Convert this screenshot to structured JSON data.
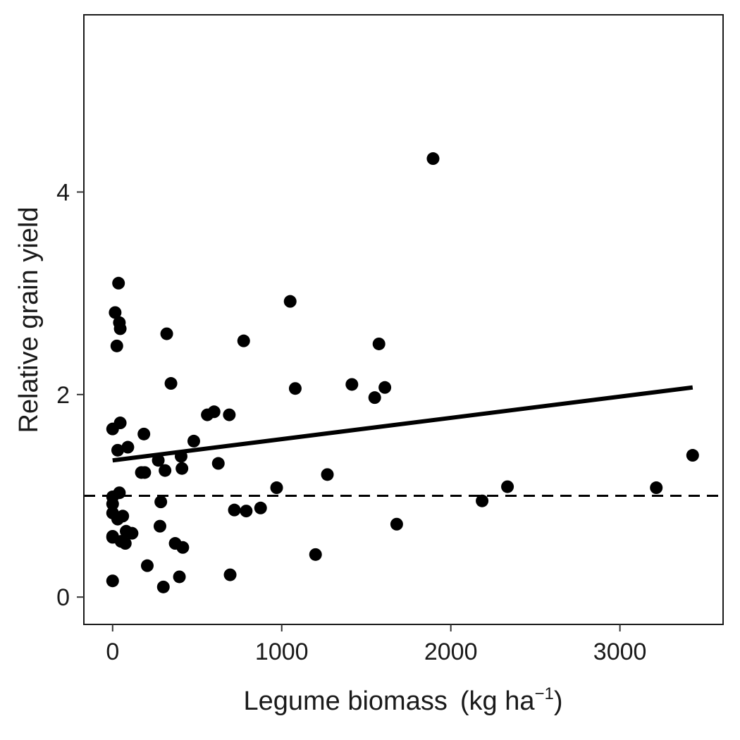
{
  "chart_data": {
    "type": "scatter",
    "title": "",
    "xlabel_main": "Legume biomass",
    "xlabel_unit_open": "(kg ha",
    "xlabel_unit_sup": "−1",
    "xlabel_unit_close": ")",
    "ylabel": "Relative grain yield",
    "xlim": [
      -170,
      3610
    ],
    "ylim": [
      -0.27,
      5.75
    ],
    "x_ticks": [
      0,
      1000,
      2000,
      3000
    ],
    "x_tick_labels": [
      "0",
      "1000",
      "2000",
      "3000"
    ],
    "y_ticks": [
      0,
      2,
      4
    ],
    "y_tick_labels": [
      "0",
      "2",
      "4"
    ],
    "grid": false,
    "legend": "none",
    "reference_line": {
      "y": 1,
      "style": "dashed"
    },
    "trend_line": {
      "x": [
        0,
        3430
      ],
      "y": [
        1.35,
        2.07
      ]
    },
    "points": [
      {
        "x": 0,
        "y": 0.16
      },
      {
        "x": 0,
        "y": 0.59
      },
      {
        "x": 0,
        "y": 0.6
      },
      {
        "x": 0,
        "y": 0.83
      },
      {
        "x": 0,
        "y": 0.92
      },
      {
        "x": 0,
        "y": 0.99
      },
      {
        "x": 0,
        "y": 1.66
      },
      {
        "x": 15,
        "y": 2.81
      },
      {
        "x": 25,
        "y": 2.48
      },
      {
        "x": 30,
        "y": 1.45
      },
      {
        "x": 30,
        "y": 0.77
      },
      {
        "x": 35,
        "y": 3.1
      },
      {
        "x": 40,
        "y": 1.03
      },
      {
        "x": 40,
        "y": 2.71
      },
      {
        "x": 45,
        "y": 2.65
      },
      {
        "x": 45,
        "y": 1.72
      },
      {
        "x": 50,
        "y": 0.55
      },
      {
        "x": 60,
        "y": 0.8
      },
      {
        "x": 75,
        "y": 0.53
      },
      {
        "x": 80,
        "y": 0.65
      },
      {
        "x": 90,
        "y": 1.48
      },
      {
        "x": 115,
        "y": 0.63
      },
      {
        "x": 170,
        "y": 1.23
      },
      {
        "x": 185,
        "y": 1.61
      },
      {
        "x": 190,
        "y": 1.23
      },
      {
        "x": 205,
        "y": 0.31
      },
      {
        "x": 270,
        "y": 1.35
      },
      {
        "x": 280,
        "y": 0.7
      },
      {
        "x": 285,
        "y": 0.94
      },
      {
        "x": 300,
        "y": 0.1
      },
      {
        "x": 310,
        "y": 1.25
      },
      {
        "x": 320,
        "y": 2.6
      },
      {
        "x": 345,
        "y": 2.11
      },
      {
        "x": 370,
        "y": 0.53
      },
      {
        "x": 395,
        "y": 0.2
      },
      {
        "x": 405,
        "y": 1.39
      },
      {
        "x": 410,
        "y": 1.27
      },
      {
        "x": 415,
        "y": 0.49
      },
      {
        "x": 480,
        "y": 1.54
      },
      {
        "x": 560,
        "y": 1.8
      },
      {
        "x": 600,
        "y": 1.83
      },
      {
        "x": 625,
        "y": 1.32
      },
      {
        "x": 690,
        "y": 1.8
      },
      {
        "x": 695,
        "y": 0.22
      },
      {
        "x": 720,
        "y": 0.86
      },
      {
        "x": 775,
        "y": 2.53
      },
      {
        "x": 790,
        "y": 0.85
      },
      {
        "x": 875,
        "y": 0.88
      },
      {
        "x": 970,
        "y": 1.08
      },
      {
        "x": 1050,
        "y": 2.92
      },
      {
        "x": 1080,
        "y": 2.06
      },
      {
        "x": 1200,
        "y": 0.42
      },
      {
        "x": 1270,
        "y": 1.21
      },
      {
        "x": 1415,
        "y": 2.1
      },
      {
        "x": 1550,
        "y": 1.97
      },
      {
        "x": 1575,
        "y": 2.5
      },
      {
        "x": 1610,
        "y": 2.07
      },
      {
        "x": 1680,
        "y": 0.72
      },
      {
        "x": 1895,
        "y": 4.33
      },
      {
        "x": 2185,
        "y": 0.95
      },
      {
        "x": 2335,
        "y": 1.09
      },
      {
        "x": 3215,
        "y": 1.08
      },
      {
        "x": 3430,
        "y": 1.4
      }
    ]
  }
}
